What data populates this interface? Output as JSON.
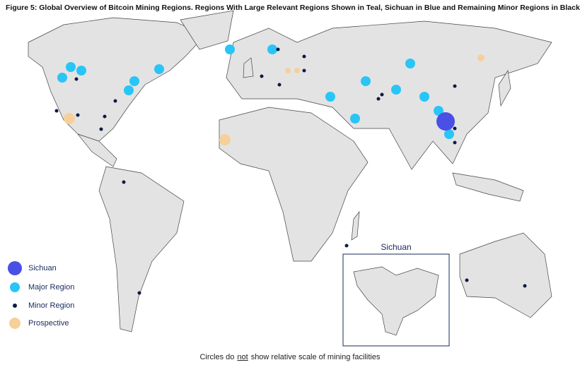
{
  "header": {
    "title": "Figure 5: Global Overview of Bitcoin Mining Regions. Regions With Large Relevant Regions Shown in Teal, Sichuan in Blue and Remaining Minor Regions in Black"
  },
  "legend": {
    "items": [
      "Sichuan",
      "Major Region",
      "Minor Region",
      "Prospective"
    ]
  },
  "inset": {
    "title": "Sichuan"
  },
  "footnote": {
    "before": "Circles do",
    "emphasis": "not",
    "after": "show relative scale of mining facilities"
  }
}
